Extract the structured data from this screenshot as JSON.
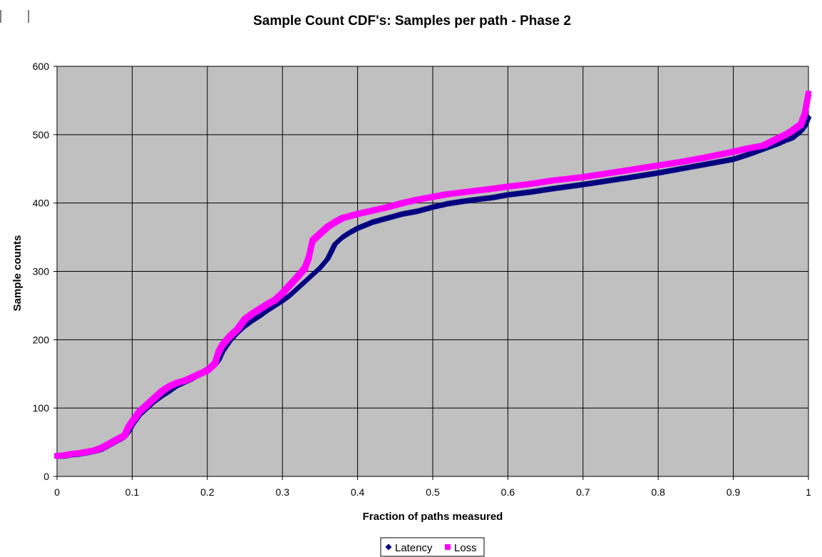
{
  "chart_data": {
    "type": "scatter",
    "title": "Sample Count CDF's:  Samples per path - Phase 2",
    "xlabel": "Fraction of paths measured",
    "ylabel": "Sample counts",
    "xlim": [
      0,
      1
    ],
    "ylim": [
      0,
      600
    ],
    "xticks": [
      "0",
      "0.1",
      "0.2",
      "0.3",
      "0.4",
      "0.5",
      "0.6",
      "0.7",
      "0.8",
      "0.9",
      "1"
    ],
    "yticks": [
      "0",
      "100",
      "200",
      "300",
      "400",
      "500",
      "600"
    ],
    "grid": true,
    "plot_background": "#c0c0c0",
    "legend_position": "bottom-center",
    "series": [
      {
        "name": "Latency",
        "color": "#000080",
        "marker": "diamond",
        "points": [
          [
            0.0,
            30
          ],
          [
            0.01,
            30
          ],
          [
            0.02,
            32
          ],
          [
            0.03,
            33
          ],
          [
            0.04,
            35
          ],
          [
            0.05,
            37
          ],
          [
            0.06,
            40
          ],
          [
            0.07,
            46
          ],
          [
            0.08,
            52
          ],
          [
            0.09,
            58
          ],
          [
            0.095,
            65
          ],
          [
            0.1,
            75
          ],
          [
            0.11,
            90
          ],
          [
            0.12,
            100
          ],
          [
            0.13,
            110
          ],
          [
            0.14,
            118
          ],
          [
            0.15,
            125
          ],
          [
            0.16,
            133
          ],
          [
            0.17,
            138
          ],
          [
            0.18,
            143
          ],
          [
            0.19,
            150
          ],
          [
            0.2,
            157
          ],
          [
            0.21,
            163
          ],
          [
            0.215,
            170
          ],
          [
            0.22,
            182
          ],
          [
            0.23,
            198
          ],
          [
            0.24,
            210
          ],
          [
            0.25,
            220
          ],
          [
            0.26,
            228
          ],
          [
            0.27,
            235
          ],
          [
            0.28,
            243
          ],
          [
            0.29,
            250
          ],
          [
            0.3,
            257
          ],
          [
            0.31,
            265
          ],
          [
            0.32,
            275
          ],
          [
            0.33,
            285
          ],
          [
            0.34,
            295
          ],
          [
            0.35,
            305
          ],
          [
            0.36,
            318
          ],
          [
            0.37,
            340
          ],
          [
            0.38,
            350
          ],
          [
            0.39,
            357
          ],
          [
            0.4,
            363
          ],
          [
            0.42,
            372
          ],
          [
            0.44,
            378
          ],
          [
            0.46,
            384
          ],
          [
            0.48,
            388
          ],
          [
            0.5,
            394
          ],
          [
            0.52,
            399
          ],
          [
            0.55,
            404
          ],
          [
            0.58,
            408
          ],
          [
            0.6,
            412
          ],
          [
            0.63,
            416
          ],
          [
            0.66,
            421
          ],
          [
            0.7,
            427
          ],
          [
            0.73,
            432
          ],
          [
            0.76,
            437
          ],
          [
            0.8,
            444
          ],
          [
            0.83,
            450
          ],
          [
            0.86,
            456
          ],
          [
            0.9,
            464
          ],
          [
            0.92,
            471
          ],
          [
            0.94,
            479
          ],
          [
            0.96,
            487
          ],
          [
            0.97,
            492
          ],
          [
            0.98,
            496
          ],
          [
            0.99,
            505
          ],
          [
            0.995,
            512
          ],
          [
            1.0,
            525
          ]
        ]
      },
      {
        "name": "Loss",
        "color": "#ff00ff",
        "marker": "square",
        "points": [
          [
            0.0,
            30
          ],
          [
            0.01,
            31
          ],
          [
            0.02,
            33
          ],
          [
            0.03,
            34
          ],
          [
            0.04,
            36
          ],
          [
            0.05,
            38
          ],
          [
            0.06,
            42
          ],
          [
            0.07,
            48
          ],
          [
            0.08,
            54
          ],
          [
            0.09,
            60
          ],
          [
            0.095,
            72
          ],
          [
            0.1,
            80
          ],
          [
            0.11,
            95
          ],
          [
            0.12,
            105
          ],
          [
            0.13,
            115
          ],
          [
            0.14,
            125
          ],
          [
            0.15,
            132
          ],
          [
            0.16,
            137
          ],
          [
            0.17,
            140
          ],
          [
            0.18,
            145
          ],
          [
            0.19,
            150
          ],
          [
            0.2,
            155
          ],
          [
            0.21,
            165
          ],
          [
            0.215,
            182
          ],
          [
            0.22,
            192
          ],
          [
            0.23,
            205
          ],
          [
            0.24,
            215
          ],
          [
            0.25,
            230
          ],
          [
            0.26,
            238
          ],
          [
            0.27,
            245
          ],
          [
            0.28,
            252
          ],
          [
            0.29,
            258
          ],
          [
            0.3,
            268
          ],
          [
            0.31,
            280
          ],
          [
            0.32,
            292
          ],
          [
            0.33,
            305
          ],
          [
            0.335,
            320
          ],
          [
            0.34,
            345
          ],
          [
            0.35,
            355
          ],
          [
            0.36,
            365
          ],
          [
            0.37,
            372
          ],
          [
            0.38,
            378
          ],
          [
            0.4,
            384
          ],
          [
            0.42,
            389
          ],
          [
            0.44,
            394
          ],
          [
            0.46,
            400
          ],
          [
            0.48,
            405
          ],
          [
            0.5,
            409
          ],
          [
            0.52,
            413
          ],
          [
            0.55,
            417
          ],
          [
            0.58,
            421
          ],
          [
            0.6,
            424
          ],
          [
            0.63,
            428
          ],
          [
            0.66,
            433
          ],
          [
            0.7,
            438
          ],
          [
            0.73,
            443
          ],
          [
            0.76,
            448
          ],
          [
            0.8,
            455
          ],
          [
            0.83,
            460
          ],
          [
            0.86,
            466
          ],
          [
            0.9,
            475
          ],
          [
            0.92,
            480
          ],
          [
            0.94,
            484
          ],
          [
            0.96,
            495
          ],
          [
            0.97,
            500
          ],
          [
            0.98,
            507
          ],
          [
            0.99,
            515
          ],
          [
            0.995,
            530
          ],
          [
            1.0,
            560
          ]
        ]
      }
    ]
  }
}
